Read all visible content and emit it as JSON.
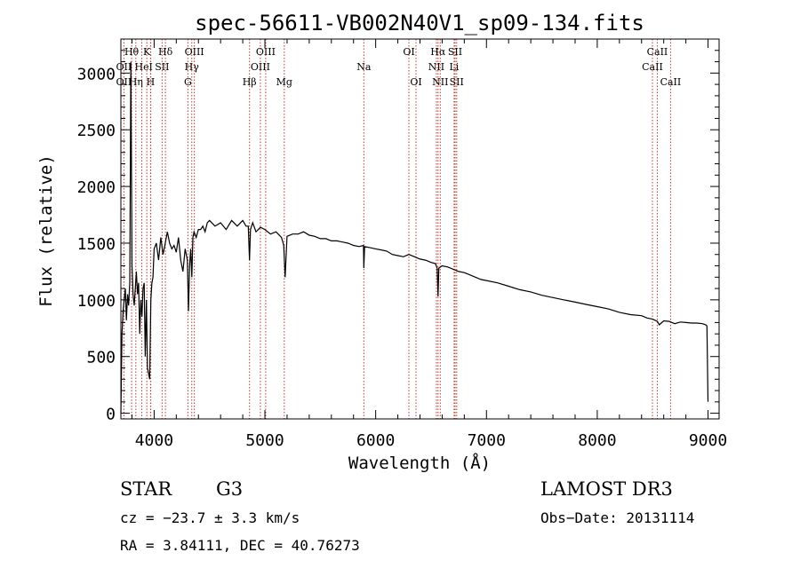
{
  "chart_data": {
    "type": "line",
    "title": "spec-56611-VB002N40V1_sp09-134.fits",
    "xlabel": "Wavelength (Å)",
    "ylabel": "Flux (relative)",
    "xlim": [
      3700,
      9100
    ],
    "ylim": [
      -50,
      3300
    ],
    "xticks": [
      4000,
      5000,
      6000,
      7000,
      8000,
      9000
    ],
    "yticks": [
      0,
      500,
      1000,
      1500,
      2000,
      2500,
      3000
    ],
    "grid": false,
    "series": [
      {
        "name": "flux",
        "x": [
          3700,
          3710,
          3720,
          3730,
          3740,
          3750,
          3760,
          3770,
          3780,
          3790,
          3800,
          3810,
          3820,
          3830,
          3840,
          3850,
          3860,
          3870,
          3880,
          3890,
          3900,
          3910,
          3920,
          3930,
          3940,
          3950,
          3960,
          3970,
          3980,
          3990,
          4000,
          4020,
          4040,
          4060,
          4080,
          4100,
          4120,
          4140,
          4160,
          4180,
          4200,
          4220,
          4240,
          4260,
          4280,
          4300,
          4310,
          4320,
          4330,
          4340,
          4350,
          4360,
          4380,
          4400,
          4420,
          4440,
          4460,
          4480,
          4500,
          4550,
          4600,
          4650,
          4700,
          4750,
          4800,
          4830,
          4850,
          4861,
          4870,
          4890,
          4920,
          4960,
          5000,
          5050,
          5100,
          5150,
          5170,
          5183,
          5200,
          5250,
          5300,
          5350,
          5400,
          5450,
          5500,
          5550,
          5600,
          5650,
          5700,
          5750,
          5800,
          5850,
          5890,
          5893,
          5900,
          5950,
          6000,
          6050,
          6100,
          6150,
          6200,
          6250,
          6300,
          6350,
          6400,
          6450,
          6500,
          6540,
          6555,
          6563,
          6570,
          6600,
          6650,
          6700,
          6750,
          6800,
          6850,
          6900,
          6950,
          7000,
          7100,
          7200,
          7300,
          7400,
          7500,
          7600,
          7700,
          7800,
          7900,
          8000,
          8100,
          8200,
          8300,
          8400,
          8450,
          8500,
          8542,
          8560,
          8600,
          8650,
          8700,
          8750,
          8800,
          8850,
          8900,
          8950,
          8980,
          8990,
          9000
        ],
        "values": [
          0,
          700,
          900,
          1000,
          1100,
          820,
          1050,
          950,
          1150,
          3100,
          1300,
          1050,
          950,
          1100,
          1250,
          1050,
          1150,
          700,
          1000,
          850,
          1100,
          1150,
          500,
          1000,
          400,
          350,
          300,
          1000,
          1150,
          1200,
          1450,
          1500,
          1350,
          1550,
          1400,
          1500,
          1600,
          1500,
          1450,
          1480,
          1420,
          1550,
          1350,
          1250,
          1450,
          1350,
          900,
          1300,
          1450,
          1200,
          1550,
          1600,
          1550,
          1620,
          1620,
          1650,
          1600,
          1680,
          1700,
          1650,
          1680,
          1620,
          1700,
          1650,
          1700,
          1650,
          1650,
          1350,
          1620,
          1680,
          1600,
          1640,
          1620,
          1580,
          1600,
          1550,
          1480,
          1200,
          1560,
          1580,
          1580,
          1600,
          1570,
          1560,
          1540,
          1540,
          1520,
          1520,
          1510,
          1500,
          1480,
          1470,
          1480,
          1280,
          1470,
          1460,
          1450,
          1440,
          1430,
          1400,
          1390,
          1380,
          1400,
          1380,
          1360,
          1350,
          1330,
          1320,
          1280,
          1030,
          1280,
          1300,
          1290,
          1270,
          1250,
          1240,
          1220,
          1200,
          1180,
          1170,
          1150,
          1120,
          1090,
          1070,
          1040,
          1020,
          1000,
          980,
          960,
          940,
          920,
          890,
          870,
          860,
          840,
          830,
          810,
          780,
          815,
          810,
          790,
          805,
          800,
          795,
          795,
          790,
          780,
          770,
          100
        ]
      }
    ],
    "line_markers": [
      {
        "label": "Hθ",
        "x": 3797,
        "row": 1
      },
      {
        "label": "K",
        "x": 3934,
        "row": 1
      },
      {
        "label": "Hδ",
        "x": 4102,
        "row": 1
      },
      {
        "label": "OIII",
        "x": 4363,
        "row": 1
      },
      {
        "label": "OIII",
        "x": 5007,
        "row": 1
      },
      {
        "label": "OI",
        "x": 6300,
        "row": 1
      },
      {
        "label": "Hα",
        "x": 6563,
        "row": 1
      },
      {
        "label": "SII",
        "x": 6717,
        "row": 1
      },
      {
        "label": "CaII",
        "x": 8542,
        "row": 1
      },
      {
        "label": "OII",
        "x": 3727,
        "row": 2
      },
      {
        "label": "He",
        "x": 3889,
        "row": 2
      },
      {
        "label": "I",
        "x": 3970,
        "row": 2
      },
      {
        "label": "SII",
        "x": 4072,
        "row": 2
      },
      {
        "label": "Hγ",
        "x": 4340,
        "row": 2
      },
      {
        "label": "OIII",
        "x": 4959,
        "row": 2
      },
      {
        "label": "Na",
        "x": 5893,
        "row": 2
      },
      {
        "label": "NII",
        "x": 6548,
        "row": 2
      },
      {
        "label": "Li",
        "x": 6708,
        "row": 2
      },
      {
        "label": "CaII",
        "x": 8498,
        "row": 2
      },
      {
        "label": "OII",
        "x": 3727,
        "row": 3
      },
      {
        "label": "Hη",
        "x": 3835,
        "row": 3
      },
      {
        "label": "H",
        "x": 3968,
        "row": 3
      },
      {
        "label": "G",
        "x": 4305,
        "row": 3
      },
      {
        "label": "Hβ",
        "x": 4861,
        "row": 3
      },
      {
        "label": "Mg",
        "x": 5175,
        "row": 3
      },
      {
        "label": "OI",
        "x": 6364,
        "row": 3
      },
      {
        "label": "NII",
        "x": 6583,
        "row": 3
      },
      {
        "label": "SII",
        "x": 6731,
        "row": 3
      },
      {
        "label": "CaII",
        "x": 8662,
        "row": 3
      }
    ]
  },
  "info": {
    "class": "STAR",
    "subclass": "G3",
    "survey": "LAMOST DR3",
    "cz": "cz = −23.7 ± 3.3 km/s",
    "obs_date": "Obs−Date: 20131114",
    "coords": "RA =   3.84111, DEC =  40.76273"
  },
  "colors": {
    "line": "#000000",
    "marker": "#c0392b",
    "background": "#ffffff"
  }
}
